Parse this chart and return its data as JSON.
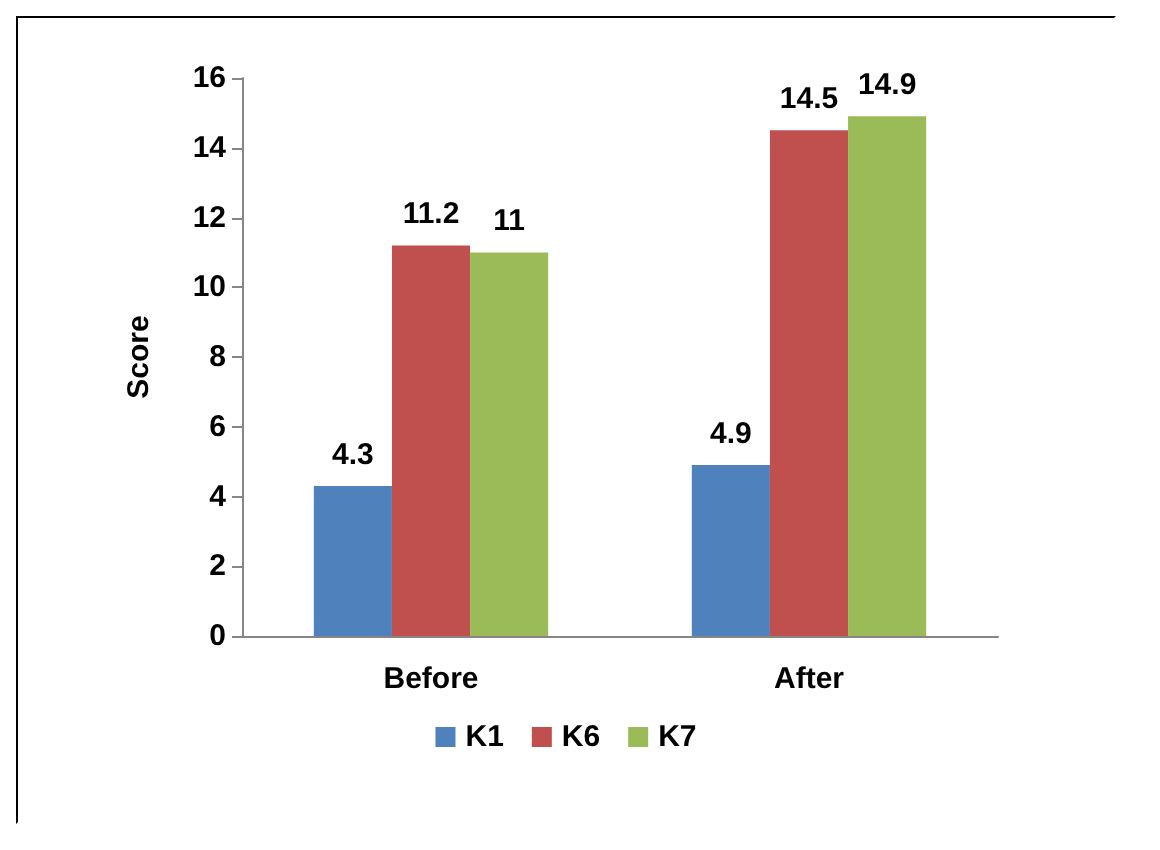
{
  "chart_data": {
    "type": "bar",
    "ylabel": "Score",
    "categories": [
      "Before",
      "After"
    ],
    "series": [
      {
        "name": "K1",
        "color": "#4f81bd",
        "values": [
          4.3,
          4.9
        ]
      },
      {
        "name": "K6",
        "color": "#c0504d",
        "values": [
          11.2,
          14.5
        ]
      },
      {
        "name": "K7",
        "color": "#9bbb59",
        "values": [
          11,
          14.9
        ]
      }
    ],
    "ylim": [
      0,
      16
    ],
    "yticks": [
      0,
      2,
      4,
      6,
      8,
      10,
      12,
      14,
      16
    ],
    "grid": false,
    "legend": "bottom",
    "data_labels": true
  }
}
